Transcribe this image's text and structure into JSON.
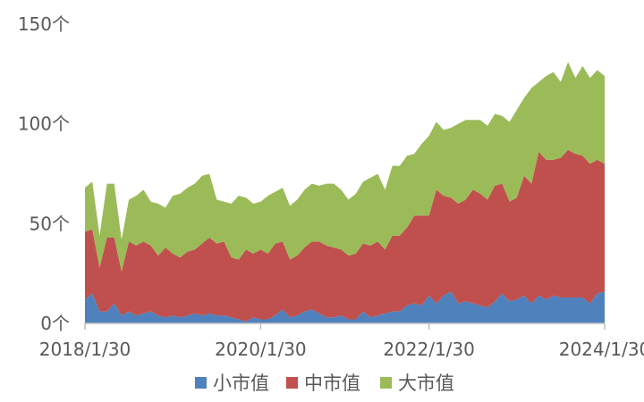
{
  "chart_data": {
    "type": "area",
    "stacked": true,
    "x_range": [
      "2018/1/30",
      "2024/1/30"
    ],
    "x_ticks": [
      "2018/1/30",
      "2020/1/30",
      "2022/1/30",
      "2024/1/30"
    ],
    "y_ticks": [
      "0个",
      "50个",
      "100个",
      "150个"
    ],
    "y_tick_values": [
      0,
      50,
      100,
      150
    ],
    "ylim": [
      0,
      150
    ],
    "grid": false,
    "legend_position": "bottom",
    "legend": [
      "小市值",
      "中市值",
      "大市值"
    ],
    "colors": [
      "#4f81bd",
      "#c0504d",
      "#9bbb59"
    ],
    "series": [
      {
        "name": "小市值",
        "values": [
          12,
          15,
          6,
          6,
          10,
          4,
          6,
          4,
          5,
          6,
          4,
          3,
          4,
          3,
          4,
          5,
          4,
          5,
          4,
          4,
          3,
          2,
          1,
          3,
          2,
          2,
          4,
          7,
          3,
          4,
          6,
          7,
          5,
          3,
          3,
          4,
          2,
          2,
          6,
          3,
          4,
          5,
          6,
          6,
          9,
          10,
          9,
          14,
          10,
          14,
          16,
          10,
          11,
          10,
          9,
          8,
          11,
          15,
          11,
          12,
          14,
          10,
          14,
          12,
          14,
          13,
          13,
          13,
          13,
          10,
          15,
          16
        ]
      },
      {
        "name": "中市值",
        "values": [
          34,
          32,
          22,
          37,
          33,
          22,
          35,
          35,
          36,
          33,
          30,
          35,
          31,
          30,
          32,
          32,
          36,
          38,
          36,
          37,
          30,
          30,
          36,
          32,
          35,
          33,
          36,
          34,
          29,
          30,
          32,
          34,
          36,
          36,
          35,
          33,
          32,
          33,
          34,
          36,
          37,
          32,
          38,
          38,
          39,
          44,
          45,
          40,
          57,
          50,
          47,
          50,
          51,
          57,
          56,
          54,
          58,
          55,
          50,
          51,
          60,
          60,
          72,
          70,
          68,
          70,
          74,
          72,
          71,
          70,
          67,
          64
        ]
      },
      {
        "name": "大市值",
        "values": [
          22,
          24,
          16,
          27,
          27,
          16,
          21,
          25,
          26,
          22,
          26,
          20,
          29,
          32,
          32,
          33,
          34,
          32,
          22,
          20,
          27,
          32,
          26,
          25,
          24,
          29,
          26,
          27,
          27,
          28,
          29,
          29,
          28,
          31,
          32,
          30,
          28,
          30,
          31,
          34,
          34,
          30,
          35,
          35,
          36,
          31,
          36,
          40,
          34,
          33,
          35,
          40,
          40,
          35,
          37,
          37,
          36,
          34,
          40,
          44,
          39,
          48,
          35,
          42,
          44,
          38,
          44,
          38,
          45,
          43,
          45,
          44
        ]
      }
    ]
  }
}
